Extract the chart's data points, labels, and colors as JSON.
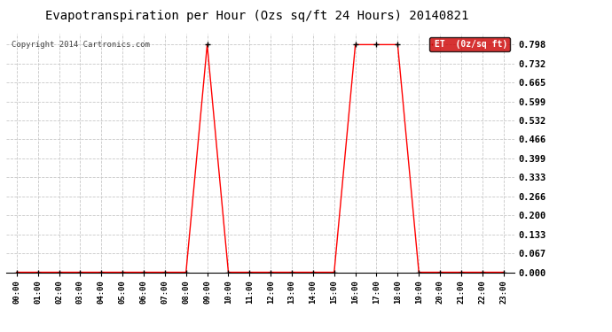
{
  "title": "Evapotranspiration per Hour (Ozs sq/ft 24 Hours) 20140821",
  "copyright": "Copyright 2014 Cartronics.com",
  "legend_label": "ET  (0z/sq ft)",
  "background_color": "#ffffff",
  "plot_bg_color": "#ffffff",
  "line_color": "#ff0000",
  "legend_bg": "#cc0000",
  "legend_fg": "#ffffff",
  "yticks": [
    0.0,
    0.067,
    0.133,
    0.2,
    0.266,
    0.333,
    0.399,
    0.466,
    0.532,
    0.599,
    0.665,
    0.732,
    0.798
  ],
  "ylim": [
    0.0,
    0.838
  ],
  "hours": [
    "00:00",
    "01:00",
    "02:00",
    "03:00",
    "04:00",
    "05:00",
    "06:00",
    "07:00",
    "08:00",
    "09:00",
    "10:00",
    "11:00",
    "12:00",
    "13:00",
    "14:00",
    "15:00",
    "16:00",
    "17:00",
    "18:00",
    "19:00",
    "20:00",
    "21:00",
    "22:00",
    "23:00"
  ],
  "values": [
    0.0,
    0.0,
    0.0,
    0.0,
    0.0,
    0.0,
    0.0,
    0.0,
    0.0,
    0.798,
    0.0,
    0.0,
    0.0,
    0.0,
    0.0,
    0.0,
    0.798,
    0.798,
    0.798,
    0.0,
    0.0,
    0.0,
    0.0,
    0.0
  ],
  "grid_color": "#c8c8c8",
  "marker": "+",
  "marker_color": "#000000",
  "marker_size": 5,
  "title_fontsize": 10,
  "copyright_fontsize": 6.5,
  "ytick_fontsize": 7.5,
  "xtick_fontsize": 6.5
}
